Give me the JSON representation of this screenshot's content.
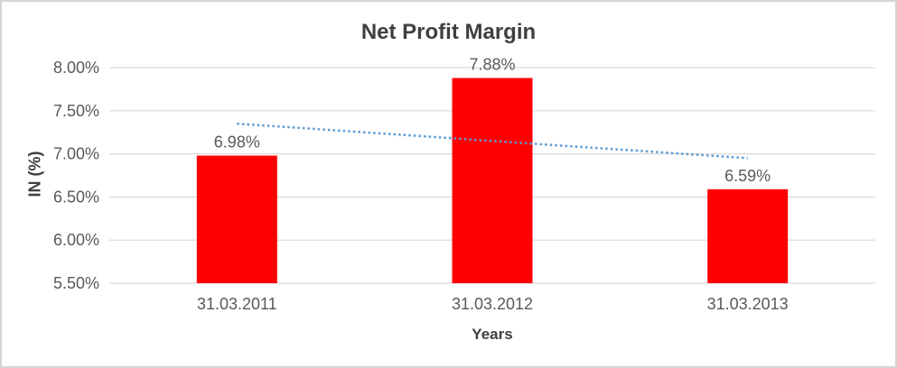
{
  "chart_data": {
    "type": "bar",
    "title": "Net Profit Margin",
    "xlabel": "Years",
    "ylabel": "IN (%)",
    "categories": [
      "31.03.2011",
      "31.03.2012",
      "31.03.2013"
    ],
    "values": [
      6.98,
      7.88,
      6.59
    ],
    "data_labels": [
      "6.98%",
      "7.88%",
      "6.59%"
    ],
    "y_ticks": [
      "8.00%",
      "7.50%",
      "7.00%",
      "6.50%",
      "6.00%",
      "5.50%"
    ],
    "ylim": [
      5.5,
      8.0
    ],
    "grid": true,
    "legend": "none",
    "bar_color": "#ff0000",
    "gridline_color": "#d9d9d9",
    "tick_text_color": "#595959",
    "title_text_color": "#3f3f3f",
    "trendline": {
      "type": "linear",
      "style": "dotted",
      "color": "#5b9bd5",
      "start_value": 7.35,
      "end_value": 6.95
    }
  }
}
